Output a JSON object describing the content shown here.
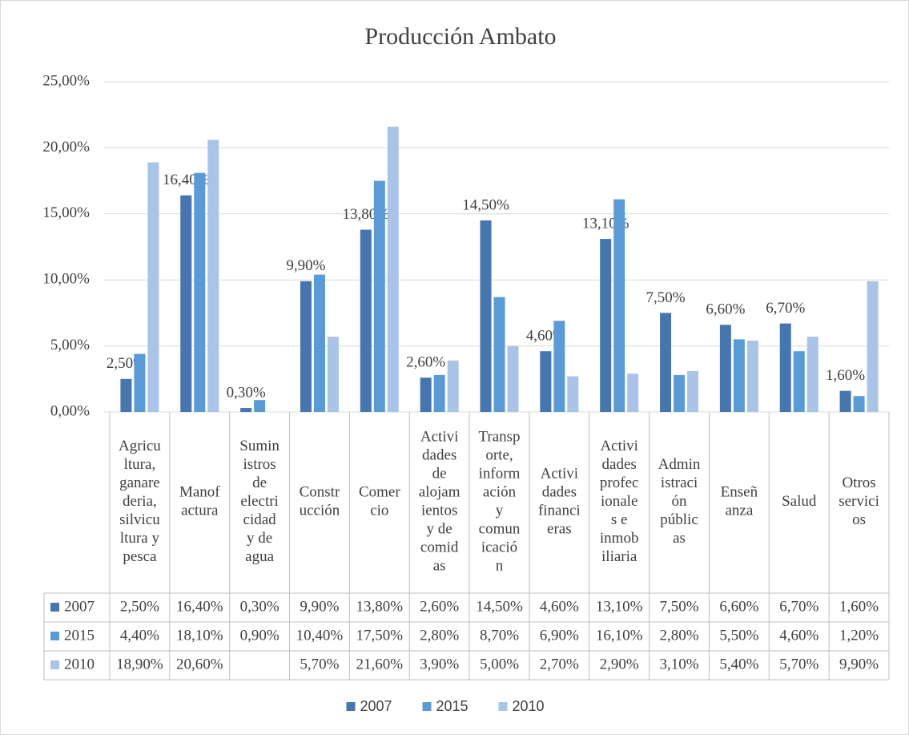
{
  "chart_data": {
    "type": "bar",
    "title": "Producción Ambato",
    "categories": [
      "Agricu\nltura,\nganare\nderia,\nsilvicu\nltura y\npesca",
      "Manof\nactura",
      "Sumin\nistros\nde\nelectri\ncidad\ny de\nagua",
      "Constr\nucción",
      "Comer\ncio",
      "Activi\ndades\nde\nalojam\nientos\ny de\ncomid\nas",
      "Transp\norte,\ninform\nación\ny\ncomun\nicació\nn",
      "Activi\ndades\nfinanci\neras",
      "Activi\ndades\nprofec\nionale\ns e\ninmob\niliaria",
      "Admin\nistraci\nón\npúblic\nas",
      "Enseñ\nanza",
      "Salud",
      "Otros\nservici\nos"
    ],
    "series": [
      {
        "name": "2007",
        "color": "#4676ad",
        "values": [
          2.5,
          16.4,
          0.3,
          9.9,
          13.8,
          2.6,
          14.5,
          4.6,
          13.1,
          7.5,
          6.6,
          6.7,
          1.6
        ],
        "value_labels": [
          "2,50%",
          "16,40%",
          "0,30%",
          "9,90%",
          "13,80%",
          "2,60%",
          "14,50%",
          "4,60%",
          "13,10%",
          "7,50%",
          "6,60%",
          "6,70%",
          "1,60%"
        ]
      },
      {
        "name": "2015",
        "color": "#5b9bd5",
        "values": [
          4.4,
          18.1,
          0.9,
          10.4,
          17.5,
          2.8,
          8.7,
          6.9,
          16.1,
          2.8,
          5.5,
          4.6,
          1.2
        ],
        "value_labels": [
          "4,40%",
          "18,10%",
          "0,90%",
          "10,40%",
          "17,50%",
          "2,80%",
          "8,70%",
          "6,90%",
          "16,10%",
          "2,80%",
          "5,50%",
          "4,60%",
          "1,20%"
        ]
      },
      {
        "name": "2010",
        "color": "#a9c4e6",
        "values": [
          18.9,
          20.6,
          null,
          5.7,
          21.6,
          3.9,
          5.0,
          2.7,
          2.9,
          3.1,
          5.4,
          5.7,
          9.9
        ],
        "value_labels": [
          "18,90%",
          "20,60%",
          null,
          "5,70%",
          "21,60%",
          "3,90%",
          "5,00%",
          "2,70%",
          "2,90%",
          "3,10%",
          "5,40%",
          "5,70%",
          "9,90%"
        ]
      }
    ],
    "ylim": [
      0,
      25
    ],
    "yticks": [
      {
        "value": 0,
        "label": "0,00%"
      },
      {
        "value": 5,
        "label": "5,00%"
      },
      {
        "value": 10,
        "label": "10,00%"
      },
      {
        "value": 15,
        "label": "15,00%"
      },
      {
        "value": 20,
        "label": "20,00%"
      },
      {
        "value": 25,
        "label": "25,00%"
      }
    ],
    "grid": true
  }
}
